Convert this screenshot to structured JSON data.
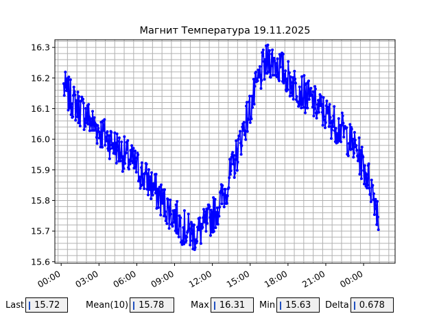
{
  "chart_data": {
    "type": "line",
    "title": "Магнит Температура 19.11.2025",
    "xlabel": "",
    "ylabel": "",
    "x_ticks": [
      "00:00",
      "03:00",
      "06:00",
      "09:00",
      "12:00",
      "15:00",
      "18:00",
      "21:00",
      "00:00"
    ],
    "x_range_hours": [
      -0.5,
      26.5
    ],
    "y_ticks": [
      "15.6",
      "15.7",
      "15.8",
      "15.9",
      "16.0",
      "16.1",
      "16.2",
      "16.3"
    ],
    "ylim": [
      15.595,
      16.325
    ],
    "grid": true,
    "series": [
      {
        "color": "#0000ff",
        "marker": "dot",
        "x_hours": [
          0.2,
          0.5,
          1,
          1.5,
          2,
          2.5,
          3,
          3.5,
          4,
          4.5,
          5,
          5.5,
          6,
          6.5,
          7,
          7.5,
          8,
          8.5,
          9,
          9.5,
          10,
          10.5,
          11,
          11.5,
          12,
          12.5,
          13,
          13.5,
          14,
          14.5,
          15,
          15.5,
          16,
          16.5,
          17,
          17.5,
          18,
          18.5,
          19,
          19.5,
          20,
          20.5,
          21,
          21.5,
          22,
          22.5,
          23,
          23.5,
          24,
          24.5,
          25,
          25.2
        ],
        "values": [
          16.17,
          16.15,
          16.12,
          16.1,
          16.08,
          16.05,
          16.03,
          16.01,
          15.99,
          15.97,
          15.95,
          15.93,
          15.91,
          15.88,
          15.86,
          15.83,
          15.8,
          15.77,
          15.75,
          15.72,
          15.7,
          15.69,
          15.7,
          15.72,
          15.75,
          15.78,
          15.83,
          15.89,
          15.96,
          16.04,
          16.1,
          16.17,
          16.23,
          16.26,
          16.25,
          16.23,
          16.2,
          16.18,
          16.16,
          16.14,
          16.12,
          16.1,
          16.08,
          16.06,
          16.04,
          16.02,
          15.99,
          15.96,
          15.91,
          15.86,
          15.79,
          15.74
        ],
        "noise_amplitude": 0.06
      }
    ]
  },
  "stats": {
    "last_label": "Last",
    "last_value": "15.72",
    "mean_label": "Mean(10)",
    "mean_value": "15.78",
    "max_label": "Max",
    "max_value": "16.31",
    "min_label": "Min",
    "min_value": "15.63",
    "delta_label": "Delta",
    "delta_value": "0.678"
  }
}
